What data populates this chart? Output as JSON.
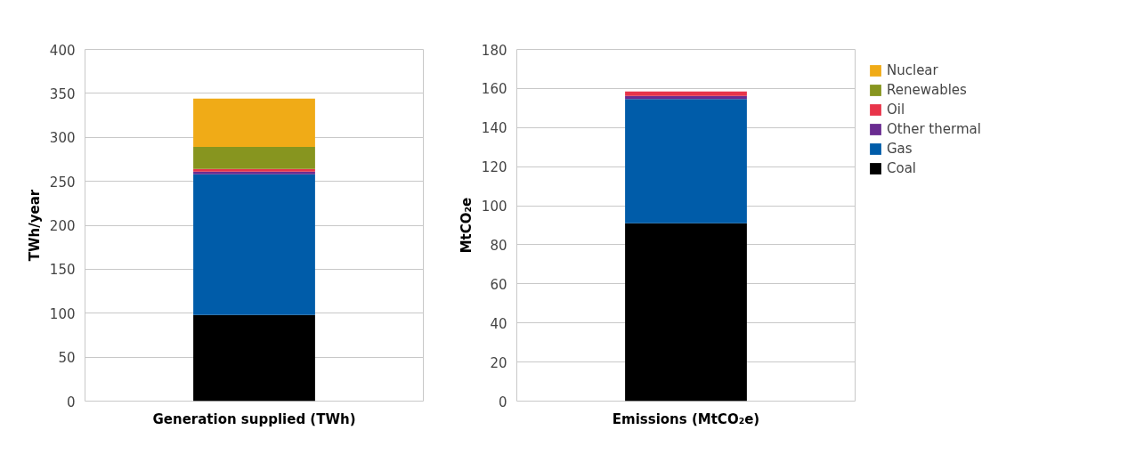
{
  "chart_data": [
    {
      "type": "bar",
      "stacked": true,
      "xlabel": "Generation supplied (TWh)",
      "ylabel": "TWh/year",
      "categories": [
        null
      ],
      "ylim": [
        0,
        400
      ],
      "yticks": [
        0,
        50,
        100,
        150,
        200,
        250,
        300,
        350,
        400
      ],
      "grid": "y",
      "legend": false,
      "series": [
        {
          "color": "#000000",
          "values": [
            98
          ]
        },
        {
          "color": "#005ca9",
          "values": [
            160
          ]
        },
        {
          "color": "#6a2c91",
          "values": [
            3
          ]
        },
        {
          "color": "#e8344a",
          "values": [
            3
          ]
        },
        {
          "color": "#87951f",
          "values": [
            25
          ]
        },
        {
          "color": "#f0ab17",
          "values": [
            55
          ]
        }
      ]
    },
    {
      "type": "bar",
      "stacked": true,
      "xlabel": "Emissions (MtCO₂e)",
      "ylabel": "MtCO₂e",
      "categories": [
        null
      ],
      "ylim": [
        0,
        180
      ],
      "yticks": [
        0,
        20,
        40,
        60,
        80,
        100,
        120,
        140,
        160,
        180
      ],
      "grid": "y",
      "legend": "right",
      "series": [
        {
          "name": "Coal",
          "color": "#000000",
          "values": [
            91
          ]
        },
        {
          "name": "Gas",
          "color": "#005ca9",
          "values": [
            63.6
          ]
        },
        {
          "name": "Other thermal",
          "color": "#6a2c91",
          "values": [
            1.6
          ]
        },
        {
          "name": "Oil",
          "color": "#e8344a",
          "values": [
            2.3
          ]
        },
        {
          "name": "Renewables",
          "color": "#87951f",
          "values": [
            0
          ]
        },
        {
          "name": "Nuclear",
          "color": "#f0ab17",
          "values": [
            0
          ]
        }
      ]
    }
  ]
}
